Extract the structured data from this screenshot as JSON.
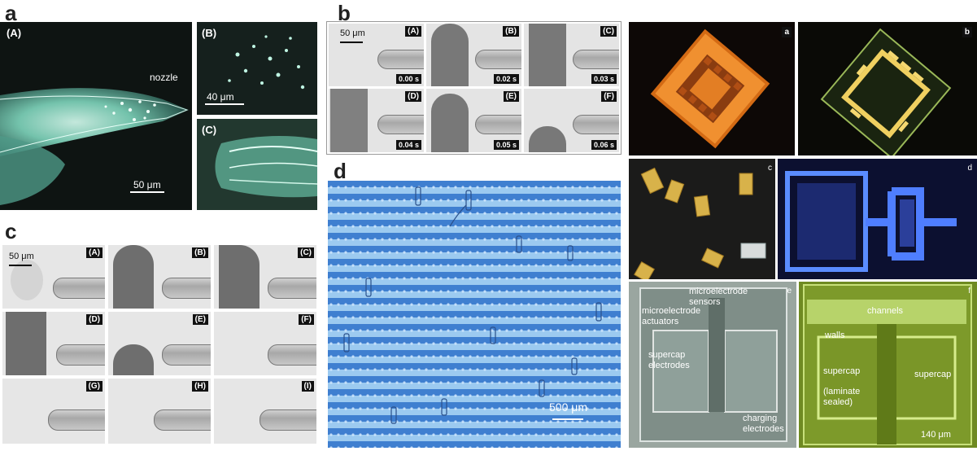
{
  "panel_a": {
    "label": "a",
    "main": {
      "tag": "(A)",
      "nozzle": "nozzle",
      "scale": "50 μm"
    },
    "b": {
      "tag": "(B)",
      "scale": "40 μm"
    },
    "c": {
      "tag": "(C)"
    }
  },
  "panel_b": {
    "label": "b",
    "scale": "50 μm",
    "frames": [
      {
        "tag": "(A)",
        "time": "0.00 s"
      },
      {
        "tag": "(B)",
        "time": "0.02 s"
      },
      {
        "tag": "(C)",
        "time": "0.03 s"
      },
      {
        "tag": "(D)",
        "time": "0.04 s"
      },
      {
        "tag": "(E)",
        "time": "0.05 s"
      },
      {
        "tag": "(F)",
        "time": "0.06 s"
      }
    ]
  },
  "panel_c": {
    "label": "c",
    "scale": "50 μm",
    "frames": [
      {
        "tag": "(A)"
      },
      {
        "tag": "(B)"
      },
      {
        "tag": "(C)"
      },
      {
        "tag": "(D)"
      },
      {
        "tag": "(E)"
      },
      {
        "tag": "(F)"
      },
      {
        "tag": "(G)"
      },
      {
        "tag": "(H)"
      },
      {
        "tag": "(I)"
      }
    ]
  },
  "panel_d": {
    "label": "d",
    "scale": "500 μm"
  },
  "right_panel": {
    "tiles": [
      "a",
      "b",
      "c",
      "d",
      "e",
      "f"
    ],
    "e_labels": {
      "sensors": "microelectrode\nsensors",
      "actuators": "microelectrode\nactuators",
      "supercap": "supercap\nelectrodes",
      "charging": "charging\nelectrodes"
    },
    "f_labels": {
      "channels": "channels",
      "walls": "walls",
      "supercap_left": "supercap\n\n(laminate\nsealed)",
      "supercap_right": "supercap",
      "scale": "140 μm"
    }
  },
  "colors": {
    "fluor_green": "#9fe8d0",
    "chip_orange": "#e07a1a",
    "chip_gold": "#e8c040",
    "blue_glow": "#3a6bff",
    "pcb_green": "#8ab02a"
  }
}
